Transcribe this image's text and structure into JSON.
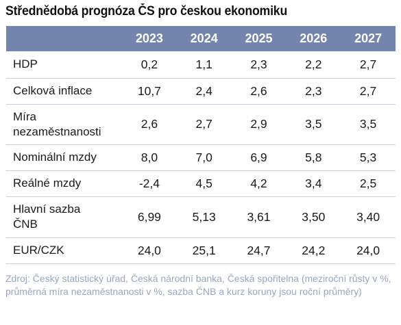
{
  "title": "Střednědobá prognóza ČS pro českou ekonomiku",
  "table": {
    "years": [
      "2023",
      "2024",
      "2025",
      "2026",
      "2027"
    ],
    "rows": [
      {
        "label": "HDP",
        "values": [
          "0,2",
          "1,1",
          "2,3",
          "2,2",
          "2,7"
        ]
      },
      {
        "label": "Celková inflace",
        "values": [
          "10,7",
          "2,4",
          "2,6",
          "2,3",
          "2,7"
        ]
      },
      {
        "label": "Míra nezaměstnanosti",
        "values": [
          "2,6",
          "2,7",
          "2,9",
          "3,5",
          "3,5"
        ]
      },
      {
        "label": "Nominální mzdy",
        "values": [
          "8,0",
          "7,0",
          "6,9",
          "5,8",
          "5,3"
        ]
      },
      {
        "label": "Reálné mzdy",
        "values": [
          "-2,4",
          "4,5",
          "4,2",
          "3,4",
          "2,5"
        ]
      },
      {
        "label": "Hlavní sazba ČNB",
        "values": [
          "6,99",
          "5,13",
          "3,61",
          "3,50",
          "3,40"
        ]
      },
      {
        "label": "EUR/CZK",
        "values": [
          "24,0",
          "25,1",
          "24,7",
          "24,2",
          "24,0"
        ]
      }
    ]
  },
  "source": "Zdroj: Český statistický úřad, Česká národní banka, Česká spořitelna (meziroční růsty v %, průměrná míra nezaměstnanosti v %, sazba ČNB a kurz koruny jsou roční průměry)",
  "colors": {
    "header_bg": "#7485ad",
    "row_border": "#c9d0e2",
    "source_text": "#9aa6bf"
  }
}
